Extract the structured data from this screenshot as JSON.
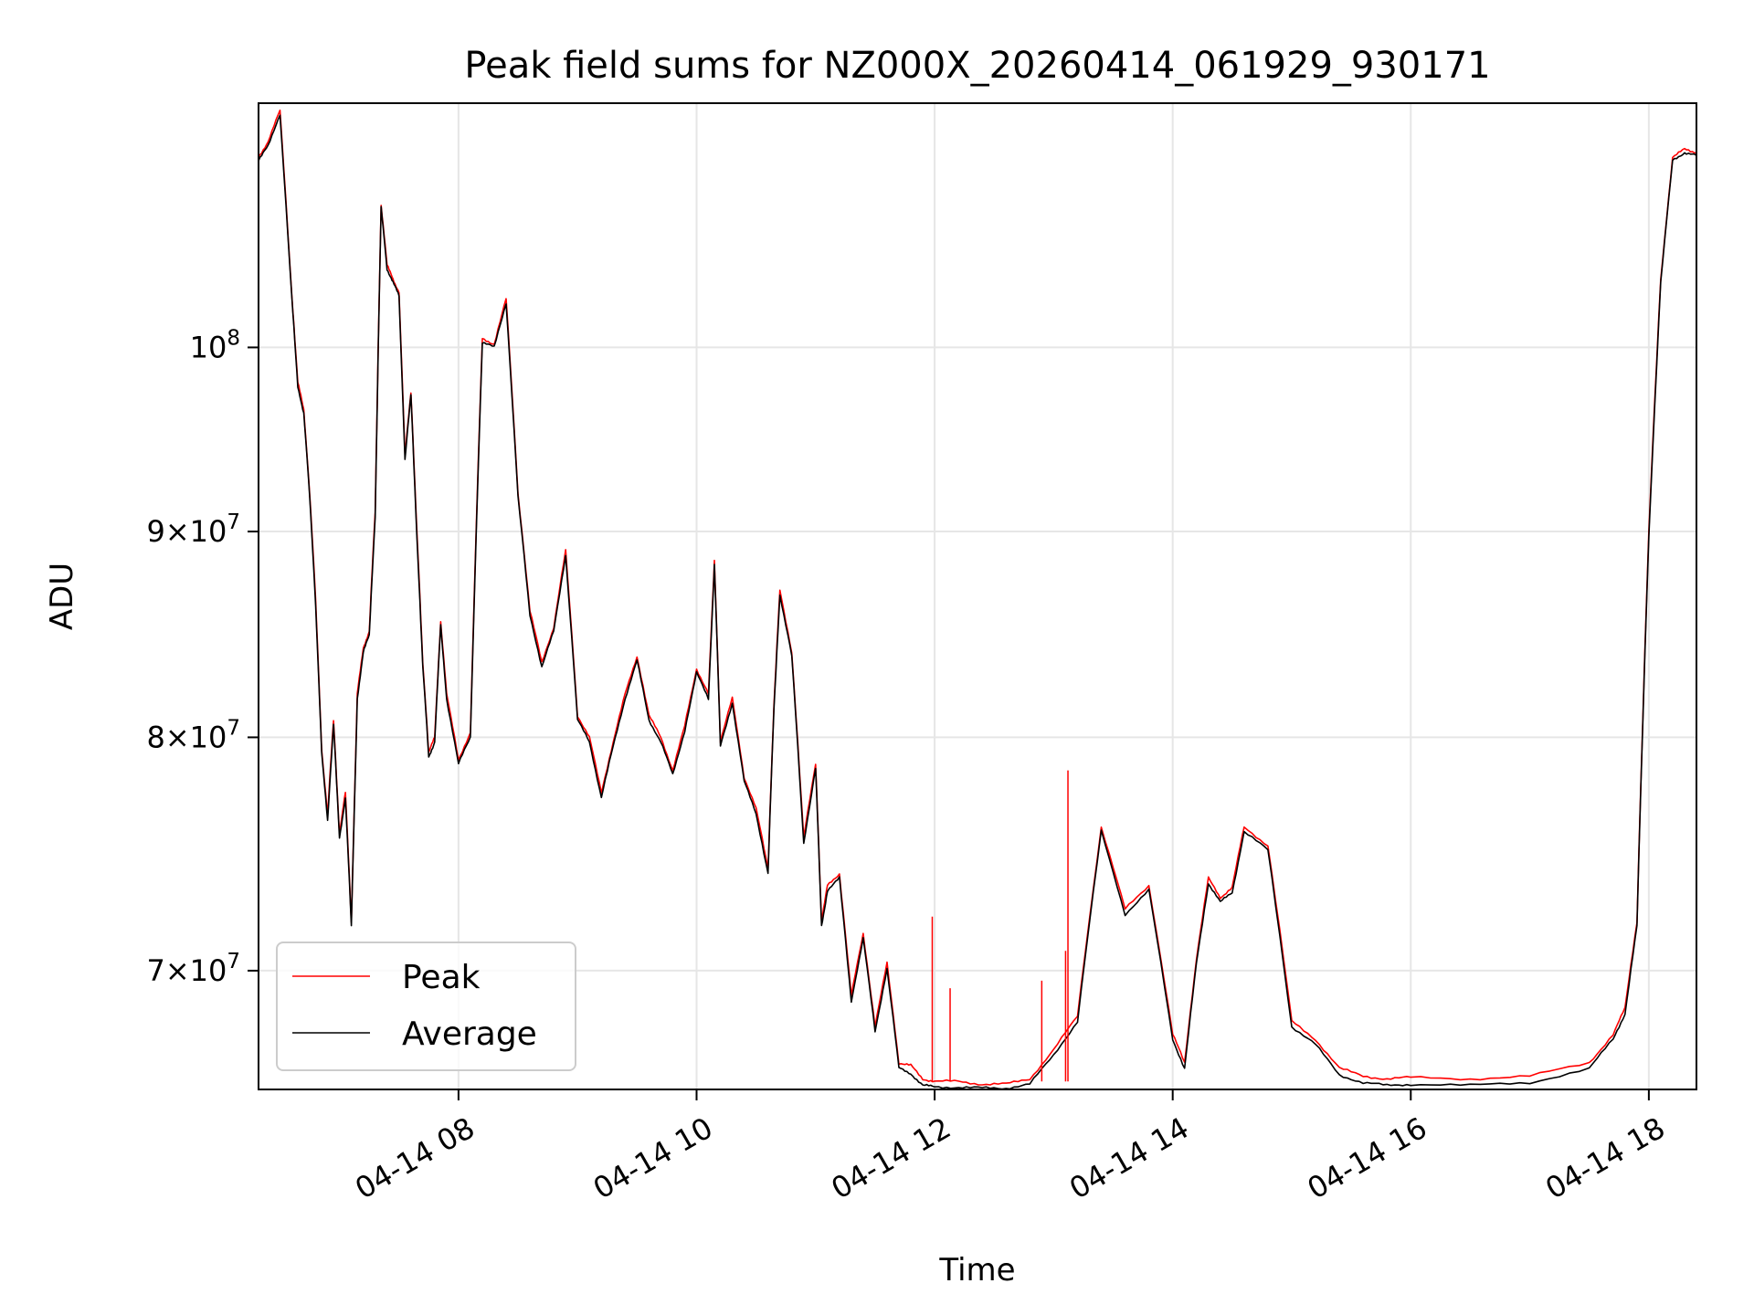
{
  "chart_data": {
    "type": "line",
    "title": "Peak field sums for NZ000X_20260414_061929_930171",
    "xlabel": "Time",
    "ylabel": "ADU",
    "yscale": "log",
    "xlim": [
      6.32,
      18.4
    ],
    "ylim": [
      65400000,
      115000000
    ],
    "grid": true,
    "legend_position": "lower-left",
    "x_ticks": [
      {
        "value": 8,
        "label": "04-14 08"
      },
      {
        "value": 10,
        "label": "04-14 10"
      },
      {
        "value": 12,
        "label": "04-14 12"
      },
      {
        "value": 14,
        "label": "04-14 14"
      },
      {
        "value": 16,
        "label": "04-14 16"
      },
      {
        "value": 18,
        "label": "04-14 18"
      }
    ],
    "y_ticks": [
      {
        "value": 70000000,
        "mantissa": "7",
        "label": "7×10^7"
      },
      {
        "value": 80000000,
        "mantissa": "8",
        "label": "8×10^7"
      },
      {
        "value": 90000000,
        "mantissa": "9",
        "label": "9×10^7"
      },
      {
        "value": 100000000,
        "mantissa": "",
        "label": "10^8"
      }
    ],
    "tick_base": "10",
    "tick_exponent": "7",
    "tick_exponent_major": "8",
    "tick_times": "×",
    "series": [
      {
        "name": "Peak",
        "color": "#ff0000",
        "x": [
          6.32,
          6.4,
          6.5,
          6.6,
          6.65,
          6.7,
          6.75,
          6.8,
          6.85,
          6.9,
          6.95,
          7.0,
          7.05,
          7.1,
          7.15,
          7.2,
          7.25,
          7.3,
          7.35,
          7.4,
          7.45,
          7.5,
          7.55,
          7.6,
          7.65,
          7.7,
          7.75,
          7.8,
          7.85,
          7.9,
          8.0,
          8.1,
          8.2,
          8.3,
          8.4,
          8.5,
          8.6,
          8.7,
          8.8,
          8.9,
          9.0,
          9.1,
          9.2,
          9.3,
          9.4,
          9.5,
          9.6,
          9.7,
          9.8,
          9.9,
          10.0,
          10.1,
          10.15,
          10.2,
          10.3,
          10.4,
          10.5,
          10.6,
          10.65,
          10.7,
          10.8,
          10.9,
          11.0,
          11.05,
          11.1,
          11.2,
          11.3,
          11.4,
          11.5,
          11.6,
          11.7,
          11.8,
          11.9,
          12.0,
          12.2,
          12.4,
          12.6,
          12.8,
          13.0,
          13.2,
          13.4,
          13.6,
          13.8,
          14.0,
          14.1,
          14.2,
          14.3,
          14.4,
          14.5,
          14.6,
          14.8,
          15.0,
          15.2,
          15.4,
          15.6,
          15.8,
          16.0,
          16.5,
          17.0,
          17.5,
          17.7,
          17.8,
          17.9,
          18.0,
          18.1,
          18.2,
          18.3,
          18.4
        ],
        "y": [
          111500000,
          112500000,
          114500000,
          103000000,
          98000000,
          96500000,
          92000000,
          86500000,
          79500000,
          76500000,
          80800000,
          75700000,
          77500000,
          72000000,
          82000000,
          84200000,
          85000000,
          91000000,
          108500000,
          104800000,
          104000000,
          103200000,
          94000000,
          97500000,
          90000000,
          83500000,
          79300000,
          80000000,
          85500000,
          82000000,
          79000000,
          80200000,
          100500000,
          100200000,
          102800000,
          92000000,
          86000000,
          83500000,
          85200000,
          89000000,
          81000000,
          80000000,
          77500000,
          79800000,
          82000000,
          83800000,
          81000000,
          80000000,
          78500000,
          80500000,
          83200000,
          82000000,
          88500000,
          79800000,
          81800000,
          78200000,
          76800000,
          74200000,
          81500000,
          87000000,
          84000000,
          75500000,
          78800000,
          72000000,
          73500000,
          74000000,
          69000000,
          71500000,
          67800000,
          70300000,
          66400000,
          66300000,
          65800000,
          65700000,
          65700000,
          65600000,
          65600000,
          65800000,
          66900000,
          68200000,
          76000000,
          72500000,
          73500000,
          67500000,
          66400000,
          70500000,
          73800000,
          73000000,
          73400000,
          76000000,
          75200000,
          68000000,
          67300000,
          66200000,
          65900000,
          65800000,
          65850000,
          65800000,
          65900000,
          66400000,
          67500000,
          68500000,
          72000000,
          90000000,
          104000000,
          111500000,
          112000000,
          111800000
        ]
      },
      {
        "name": "Average",
        "color": "#000000",
        "x": [
          6.32,
          6.4,
          6.5,
          6.6,
          6.65,
          6.7,
          6.75,
          6.8,
          6.85,
          6.9,
          6.95,
          7.0,
          7.05,
          7.1,
          7.15,
          7.2,
          7.25,
          7.3,
          7.35,
          7.4,
          7.45,
          7.5,
          7.55,
          7.6,
          7.65,
          7.7,
          7.75,
          7.8,
          7.85,
          7.9,
          8.0,
          8.1,
          8.2,
          8.3,
          8.4,
          8.5,
          8.6,
          8.7,
          8.8,
          8.9,
          9.0,
          9.1,
          9.2,
          9.3,
          9.4,
          9.5,
          9.6,
          9.7,
          9.8,
          9.9,
          10.0,
          10.1,
          10.15,
          10.2,
          10.3,
          10.4,
          10.5,
          10.6,
          10.65,
          10.7,
          10.8,
          10.9,
          11.0,
          11.05,
          11.1,
          11.2,
          11.3,
          11.4,
          11.5,
          11.6,
          11.7,
          11.8,
          11.9,
          12.0,
          12.2,
          12.4,
          12.6,
          12.8,
          13.0,
          13.2,
          13.4,
          13.6,
          13.8,
          14.0,
          14.1,
          14.2,
          14.3,
          14.4,
          14.5,
          14.6,
          14.8,
          15.0,
          15.2,
          15.4,
          15.6,
          15.8,
          16.0,
          16.5,
          17.0,
          17.5,
          17.7,
          17.8,
          17.9,
          18.0,
          18.1,
          18.2,
          18.3,
          18.4
        ],
        "y": [
          111300000,
          112200000,
          114300000,
          102800000,
          97800000,
          96300000,
          91800000,
          86300000,
          79300000,
          76300000,
          80600000,
          75500000,
          77300000,
          71800000,
          81800000,
          84000000,
          84800000,
          90800000,
          108300000,
          104600000,
          103800000,
          103000000,
          93800000,
          97300000,
          89800000,
          83300000,
          79100000,
          79800000,
          85300000,
          81800000,
          78800000,
          80000000,
          100300000,
          100000000,
          102600000,
          91800000,
          85800000,
          83300000,
          85000000,
          88800000,
          80800000,
          79800000,
          77300000,
          79600000,
          81800000,
          83600000,
          80800000,
          79800000,
          78300000,
          80300000,
          83000000,
          81800000,
          88300000,
          79600000,
          81600000,
          78000000,
          76600000,
          74000000,
          81300000,
          86800000,
          83800000,
          75300000,
          78600000,
          71800000,
          73300000,
          73800000,
          68800000,
          71300000,
          67600000,
          70100000,
          66200000,
          66000000,
          65550000,
          65500000,
          65480000,
          65450000,
          65450000,
          65600000,
          66700000,
          68000000,
          75800000,
          72300000,
          73300000,
          67300000,
          66200000,
          70300000,
          73600000,
          72800000,
          73200000,
          75800000,
          75000000,
          67800000,
          67100000,
          65950000,
          65650000,
          65550000,
          65600000,
          65550000,
          65650000,
          66200000,
          67300000,
          68300000,
          71800000,
          89800000,
          103800000,
          111300000,
          111800000,
          111600000
        ]
      }
    ],
    "spikes": [
      {
        "x": 11.98,
        "y": 72200000
      },
      {
        "x": 12.13,
        "y": 69300000
      },
      {
        "x": 12.9,
        "y": 69600000
      },
      {
        "x": 13.1,
        "y": 70800000
      },
      {
        "x": 13.12,
        "y": 78500000
      }
    ]
  }
}
